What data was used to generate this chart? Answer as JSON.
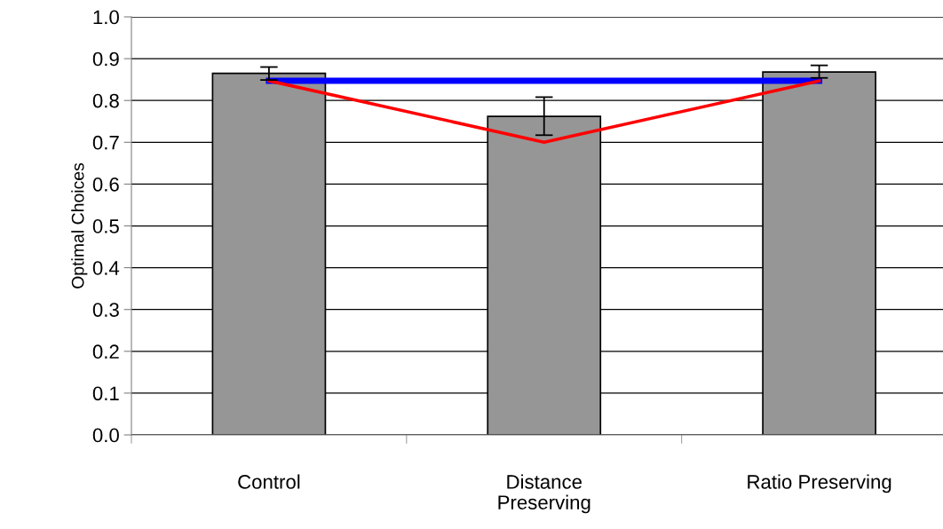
{
  "chart_data": {
    "type": "bar",
    "ylabel": "Optimal Choices",
    "categories": [
      "Control",
      "Distance\nPreserving",
      "Ratio Preserving"
    ],
    "series": [
      {
        "color": "#969696",
        "values": [
          0.865,
          0.762,
          0.868
        ],
        "errors": [
          [
            0.849,
            0.88
          ],
          [
            0.717,
            0.808
          ],
          [
            0.854,
            0.884
          ]
        ]
      },
      {
        "type": "line",
        "color": "#0000ff",
        "values": [
          0.847,
          0.847,
          0.847
        ]
      },
      {
        "type": "line",
        "color": "#ff0000",
        "values": [
          0.847,
          0.7,
          0.847
        ]
      }
    ],
    "ylim": [
      0,
      1
    ],
    "yticks": [
      {
        "value": 0,
        "label": "0.0"
      },
      {
        "value": 0.1,
        "label": "0.1"
      },
      {
        "value": 0.2,
        "label": "0.2"
      },
      {
        "value": 0.3,
        "label": "0.3"
      },
      {
        "value": 0.4,
        "label": "0.4"
      },
      {
        "value": 0.5,
        "label": "0.5"
      },
      {
        "value": 0.6,
        "label": "0.6"
      },
      {
        "value": 0.7,
        "label": "0.7"
      },
      {
        "value": 0.8,
        "label": "0.8"
      },
      {
        "value": 0.9,
        "label": "0.9"
      },
      {
        "value": 1,
        "label": "1.0"
      }
    ],
    "grid": "y"
  }
}
